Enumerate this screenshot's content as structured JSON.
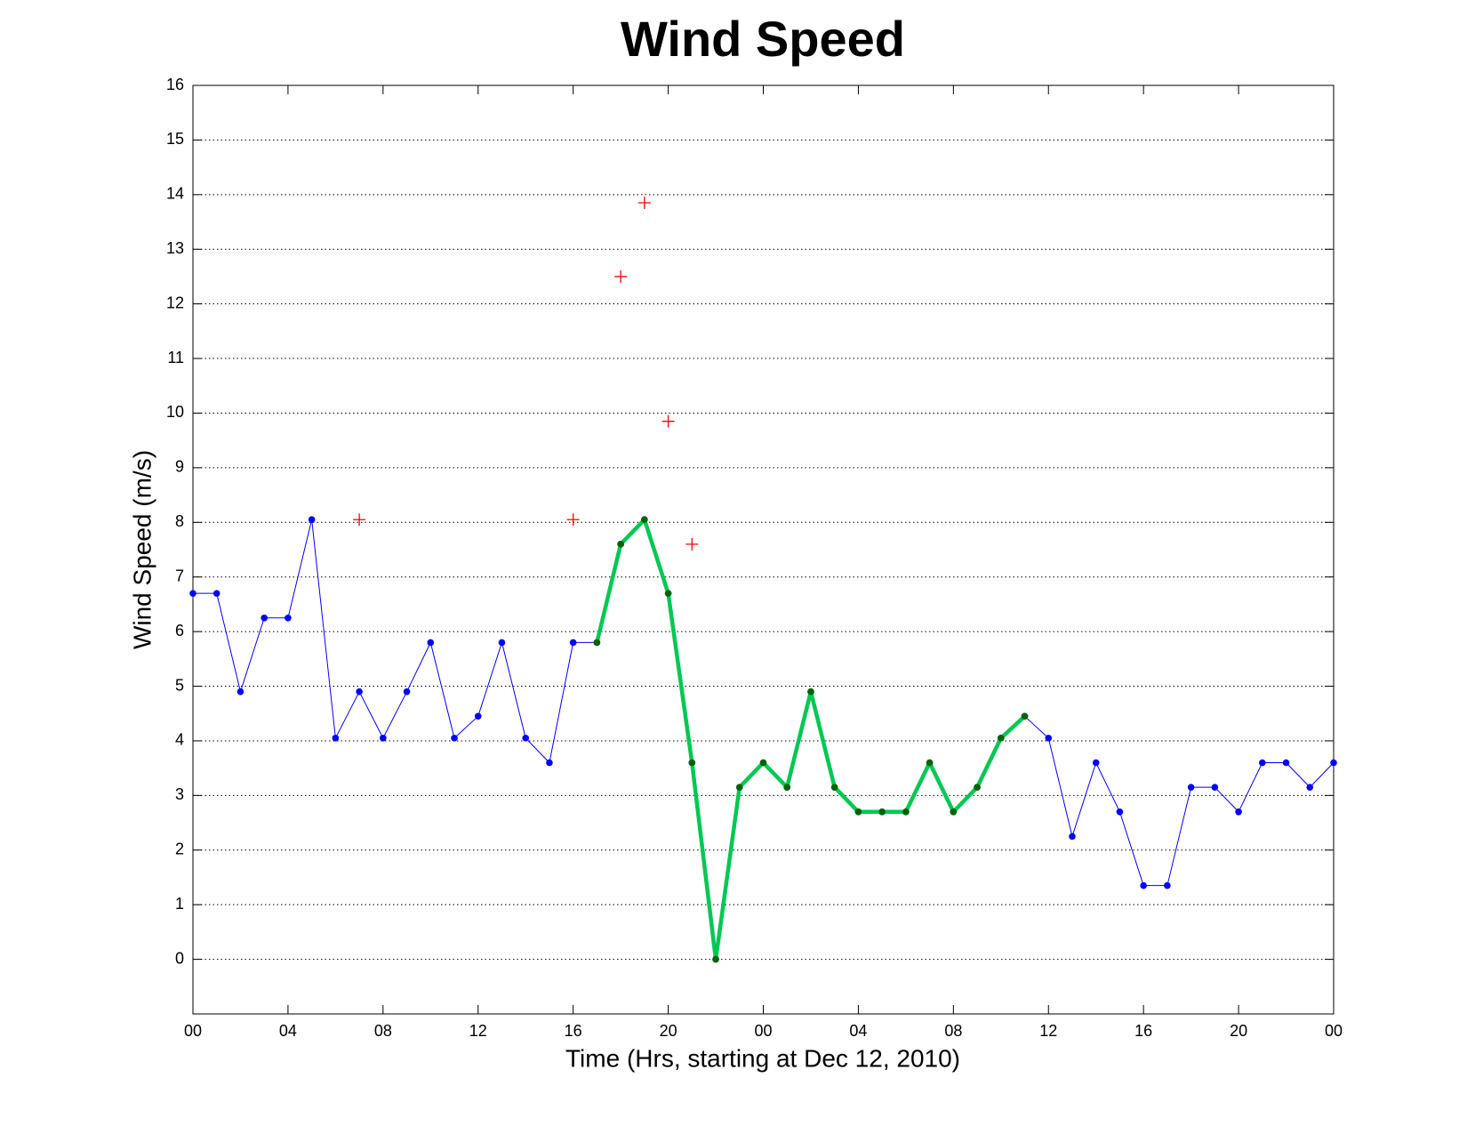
{
  "chart_data": {
    "type": "line",
    "title": "Wind Speed",
    "xlabel": "Time (Hrs, starting at Dec 12, 2010)",
    "ylabel": "Wind Speed (m/s)",
    "x": [
      0,
      1,
      2,
      3,
      4,
      5,
      6,
      7,
      8,
      9,
      10,
      11,
      12,
      13,
      14,
      15,
      16,
      17,
      18,
      19,
      20,
      21,
      22,
      23,
      24,
      25,
      26,
      27,
      28,
      29,
      30,
      31,
      32,
      33,
      34,
      35,
      36,
      37,
      38,
      39,
      40,
      41,
      42,
      43,
      44,
      45,
      46,
      47,
      48
    ],
    "xlim": [
      0,
      48
    ],
    "xticks": [
      {
        "value": 0,
        "label": "00"
      },
      {
        "value": 4,
        "label": "04"
      },
      {
        "value": 8,
        "label": "08"
      },
      {
        "value": 12,
        "label": "12"
      },
      {
        "value": 16,
        "label": "16"
      },
      {
        "value": 20,
        "label": "20"
      },
      {
        "value": 24,
        "label": "00"
      },
      {
        "value": 28,
        "label": "04"
      },
      {
        "value": 32,
        "label": "08"
      },
      {
        "value": 36,
        "label": "12"
      },
      {
        "value": 40,
        "label": "16"
      },
      {
        "value": 44,
        "label": "20"
      },
      {
        "value": 48,
        "label": "00"
      }
    ],
    "ylim": [
      -1,
      16
    ],
    "yticks": [
      0,
      1,
      2,
      3,
      4,
      5,
      6,
      7,
      8,
      9,
      10,
      11,
      12,
      13,
      14,
      15,
      16
    ],
    "grid": true,
    "series": [
      {
        "color": "#0000ff",
        "marker_color": "#0000ff",
        "style": "line",
        "width": 1,
        "values": [
          6.7,
          6.7,
          4.9,
          6.25,
          6.25,
          8.05,
          4.05,
          4.9,
          4.05,
          4.9,
          5.8,
          4.05,
          4.45,
          5.8,
          4.05,
          3.6,
          5.8,
          5.8,
          7.6,
          8.05,
          6.7,
          3.6,
          0,
          3.15,
          3.6,
          3.15,
          4.9,
          3.15,
          2.7,
          2.7,
          2.7,
          3.6,
          2.7,
          3.15,
          4.05,
          4.45,
          4.05,
          2.25,
          3.6,
          2.7,
          1.35,
          1.35,
          3.15,
          3.15,
          2.7,
          3.6,
          3.6,
          3.15,
          3.6
        ]
      },
      {
        "color": "#00c853",
        "marker_color": "#006400",
        "style": "line",
        "width": 4.5,
        "values": [
          null,
          null,
          null,
          null,
          null,
          null,
          null,
          null,
          null,
          null,
          null,
          null,
          null,
          null,
          null,
          null,
          null,
          5.8,
          7.6,
          8.05,
          6.7,
          3.6,
          0,
          3.15,
          3.6,
          3.15,
          4.9,
          3.15,
          2.7,
          2.7,
          2.7,
          3.6,
          2.7,
          3.15,
          4.05,
          4.45,
          null,
          null,
          null,
          null,
          null,
          null,
          null,
          null,
          null,
          null,
          null,
          null,
          null
        ]
      },
      {
        "color": "#ff0000",
        "style": "plus",
        "x": [
          7,
          16,
          18,
          19,
          20,
          21
        ],
        "values": [
          8.05,
          8.05,
          12.5,
          13.85,
          9.85,
          7.6
        ]
      }
    ]
  }
}
